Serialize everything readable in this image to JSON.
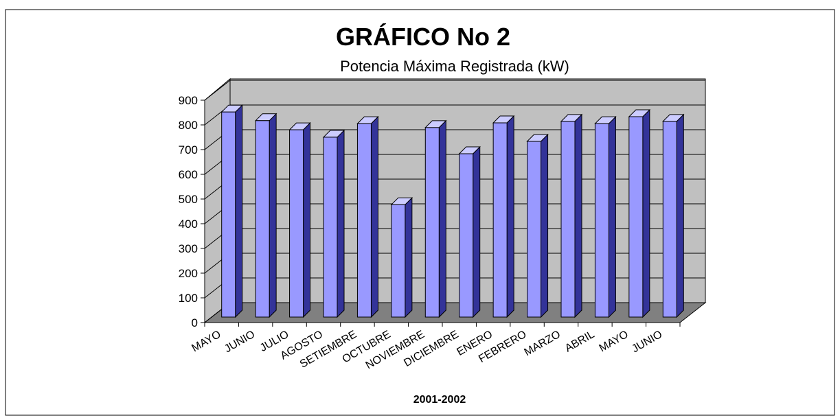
{
  "chart_data": {
    "type": "bar3d",
    "title": "GRÁFICO No 2",
    "subtitle": "Potencia Máxima Registrada (kW)",
    "x_label": "2001-2002",
    "categories": [
      "MAYO",
      "JUNIO",
      "JULIO",
      "AGOSTO",
      "SETIEMBRE",
      "OCTUBRE",
      "NOVIEMBRE",
      "DICIEMBRE",
      "ENERO",
      "FEBRERO",
      "MARZO",
      "ABRIL",
      "MAYO",
      "JUNIO"
    ],
    "values": [
      830,
      795,
      758,
      728,
      783,
      455,
      767,
      661,
      786,
      711,
      792,
      783,
      811,
      792
    ],
    "color": "#9999ff",
    "ylim": [
      0,
      900
    ],
    "yticks": [
      0,
      100,
      200,
      300,
      400,
      500,
      600,
      700,
      800,
      900
    ],
    "grid": true
  }
}
